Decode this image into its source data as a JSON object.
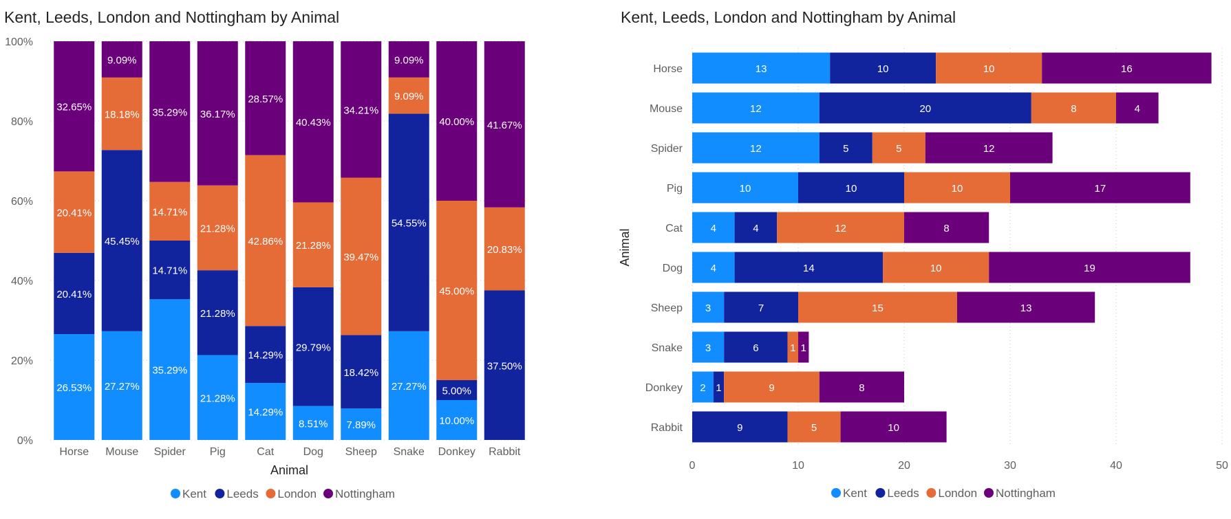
{
  "colors": {
    "Kent": "#118DFF",
    "Leeds": "#12239E",
    "London": "#E66C37",
    "Nottingham": "#6B007B"
  },
  "chart_data": [
    {
      "type": "bar",
      "orientation": "vertical",
      "stacking": "percent",
      "title": "Kent, Leeds, London and Nottingham by Animal",
      "xlabel": "Animal",
      "ylabel": "",
      "ylim": [
        0,
        100
      ],
      "yticks": [
        "0%",
        "20%",
        "40%",
        "60%",
        "80%",
        "100%"
      ],
      "categories": [
        "Horse",
        "Mouse",
        "Spider",
        "Pig",
        "Cat",
        "Dog",
        "Sheep",
        "Snake",
        "Donkey",
        "Rabbit"
      ],
      "series": [
        {
          "name": "Kent",
          "values": [
            26.53,
            27.27,
            35.29,
            21.28,
            14.29,
            8.51,
            7.89,
            27.27,
            10.0,
            0
          ],
          "labels": [
            "26.53%",
            "27.27%",
            "35.29%",
            "21.28%",
            "14.29%",
            "8.51%",
            "7.89%",
            "27.27%",
            "10.00%",
            ""
          ]
        },
        {
          "name": "Leeds",
          "values": [
            20.41,
            45.45,
            14.71,
            21.28,
            14.29,
            29.79,
            18.42,
            54.55,
            5.0,
            37.5
          ],
          "labels": [
            "20.41%",
            "45.45%",
            "14.71%",
            "21.28%",
            "14.29%",
            "29.79%",
            "18.42%",
            "54.55%",
            "5.00%",
            "37.50%"
          ]
        },
        {
          "name": "London",
          "values": [
            20.41,
            18.18,
            14.71,
            21.28,
            42.86,
            21.28,
            39.47,
            9.09,
            45.0,
            20.83
          ],
          "labels": [
            "20.41%",
            "18.18%",
            "14.71%",
            "21.28%",
            "42.86%",
            "21.28%",
            "39.47%",
            "9.09%",
            "45.00%",
            "20.83%"
          ]
        },
        {
          "name": "Nottingham",
          "values": [
            32.65,
            9.09,
            35.29,
            36.17,
            28.57,
            40.43,
            34.21,
            9.09,
            40.0,
            41.67
          ],
          "labels": [
            "32.65%",
            "9.09%",
            "35.29%",
            "36.17%",
            "28.57%",
            "40.43%",
            "34.21%",
            "9.09%",
            "40.00%",
            "41.67%"
          ]
        }
      ],
      "legend": {
        "position": "bottom",
        "entries": [
          "Kent",
          "Leeds",
          "London",
          "Nottingham"
        ]
      },
      "grid": true
    },
    {
      "type": "bar",
      "orientation": "horizontal",
      "stacking": "stacked",
      "title": "Kent, Leeds, London and Nottingham by Animal",
      "xlabel": "",
      "ylabel": "Animal",
      "xlim": [
        0,
        50
      ],
      "xticks": [
        "0",
        "10",
        "20",
        "30",
        "40",
        "50"
      ],
      "categories": [
        "Horse",
        "Mouse",
        "Spider",
        "Pig",
        "Cat",
        "Dog",
        "Sheep",
        "Snake",
        "Donkey",
        "Rabbit"
      ],
      "series": [
        {
          "name": "Kent",
          "values": [
            13,
            12,
            12,
            10,
            4,
            4,
            3,
            3,
            2,
            0
          ]
        },
        {
          "name": "Leeds",
          "values": [
            10,
            20,
            5,
            10,
            4,
            14,
            7,
            6,
            1,
            9
          ]
        },
        {
          "name": "London",
          "values": [
            10,
            8,
            5,
            10,
            12,
            10,
            15,
            1,
            9,
            5
          ]
        },
        {
          "name": "Nottingham",
          "values": [
            16,
            4,
            12,
            17,
            8,
            19,
            13,
            1,
            8,
            10
          ]
        }
      ],
      "legend": {
        "position": "bottom",
        "entries": [
          "Kent",
          "Leeds",
          "London",
          "Nottingham"
        ]
      },
      "grid": true
    }
  ]
}
